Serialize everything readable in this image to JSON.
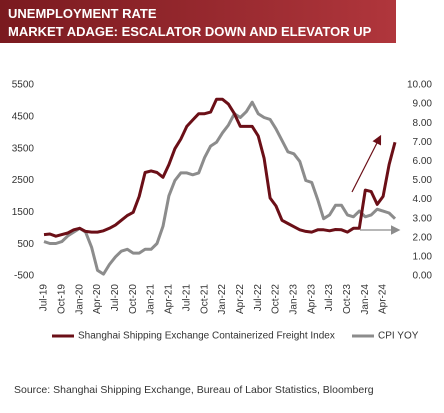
{
  "chart_data": {
    "type": "line",
    "title": "UNEMPLOYMENT RATE",
    "subtitle": "MARKET ADAGE: ESCALATOR DOWN AND ELEVATOR UP",
    "source": "Source:  Shanghai Shipping Exchange,  Bureau of Labor Statistics,  Bloomberg",
    "categories": [
      "Jul-19",
      null,
      null,
      "Oct-19",
      null,
      null,
      "Jan-20",
      null,
      null,
      "Apr-20",
      null,
      null,
      "Jul-20",
      null,
      null,
      "Oct-20",
      null,
      null,
      "Jan-21",
      null,
      null,
      "Apr-21",
      null,
      null,
      "Jul-21",
      null,
      null,
      "Oct-21",
      null,
      null,
      "Jan-22",
      null,
      null,
      "Apr-22",
      null,
      null,
      "Jul-22",
      null,
      null,
      "Oct-22",
      null,
      null,
      "Jan-23",
      null,
      null,
      "Apr-23",
      null,
      null,
      "Jul-23",
      null,
      null,
      "Oct-23",
      null,
      null,
      "Jan-24",
      null,
      null,
      "Apr-24",
      null,
      null
    ],
    "series": [
      {
        "name": "Shanghai Shipping Exchange Containerized Freight Index",
        "color": "#6b0f17",
        "axis": "y",
        "values": [
          800,
          820,
          750,
          800,
          850,
          950,
          1000,
          900,
          880,
          880,
          920,
          1000,
          1100,
          1250,
          1400,
          1500,
          2000,
          2750,
          2800,
          2750,
          2600,
          3000,
          3500,
          3800,
          4200,
          4400,
          4600,
          4600,
          4650,
          5050,
          5050,
          4900,
          4600,
          4200,
          4200,
          4200,
          3900,
          3200,
          1950,
          1700,
          1250,
          1150,
          1050,
          950,
          900,
          880,
          950,
          950,
          920,
          960,
          950,
          880,
          1000,
          1000,
          2200,
          2150,
          1750,
          2000,
          3000,
          3700
        ]
      },
      {
        "name": "CPI YOY",
        "color": "#8c8c8c",
        "axis": "y2",
        "values": [
          1.8,
          1.7,
          1.7,
          1.8,
          2.1,
          2.3,
          2.5,
          2.3,
          1.5,
          0.3,
          0.1,
          0.6,
          1.0,
          1.3,
          1.4,
          1.2,
          1.2,
          1.4,
          1.4,
          1.7,
          2.6,
          4.2,
          5.0,
          5.4,
          5.4,
          5.3,
          5.4,
          6.2,
          6.8,
          7.0,
          7.5,
          7.9,
          8.5,
          8.3,
          8.6,
          9.1,
          8.5,
          8.3,
          8.2,
          7.7,
          7.1,
          6.5,
          6.4,
          6.0,
          5.0,
          4.9,
          4.0,
          3.0,
          3.2,
          3.7,
          3.7,
          3.2,
          3.1,
          3.4,
          3.1,
          3.2,
          3.5,
          3.4,
          3.3,
          3.0
        ]
      }
    ],
    "ylim": [
      -500,
      5500
    ],
    "yticks": [
      -500,
      500,
      1500,
      2500,
      3500,
      4500,
      5500
    ],
    "y2lim": [
      0,
      10
    ],
    "y2ticks": [
      {
        "value": 0,
        "label": "0.00"
      },
      {
        "value": 1,
        "label": "1.00"
      },
      {
        "value": 2,
        "label": "2.00"
      },
      {
        "value": 3,
        "label": "3.00"
      },
      {
        "value": 4,
        "label": "4.00"
      },
      {
        "value": 5,
        "label": "5.00"
      },
      {
        "value": 6,
        "label": "6.00"
      },
      {
        "value": 7,
        "label": "7.00"
      },
      {
        "value": 8,
        "label": "8.00"
      },
      {
        "value": 9,
        "label": "9.00"
      },
      {
        "value": 10,
        "label": "10.00"
      }
    ],
    "grid": false,
    "legend": "bottom"
  }
}
